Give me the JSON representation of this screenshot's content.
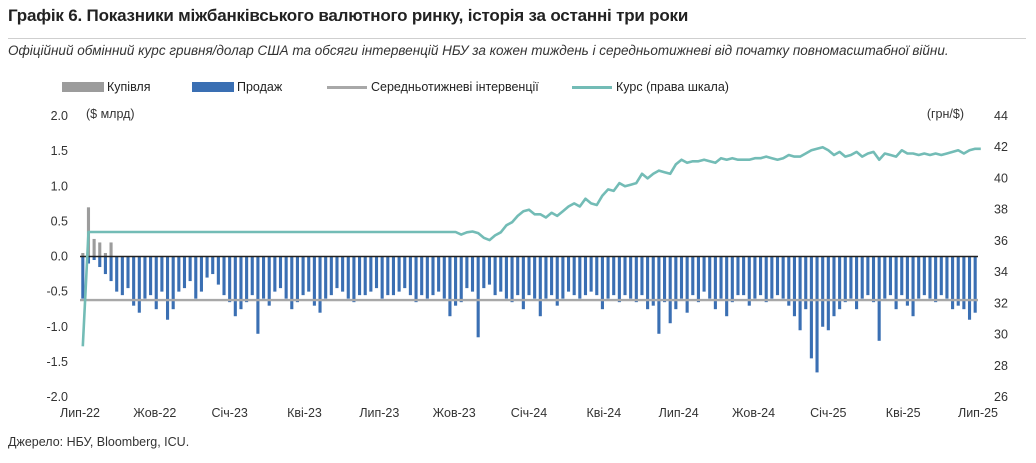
{
  "chart_data": {
    "type": "bar+line",
    "title": "Графік 6. Показники міжбанківського валютного ринку, історія за останні три роки",
    "subtitle": "Офіційний обмінний курс гривня/долар США та обсяги інтервенцій НБУ за кожен тиждень і середньотижневі від початку повномасштабної війни.",
    "source": "Джерело: НБУ, Bloomberg, ICU.",
    "y_left_unit": "($ млрд)",
    "y_right_unit": "(грн/$)",
    "ylim_left": [
      -2.0,
      2.0
    ],
    "ylim_right": [
      26,
      44
    ],
    "yticks_left": [
      "2.0",
      "1.5",
      "1.0",
      "0.5",
      "0.0",
      "-0.5",
      "-1.0",
      "-1.5",
      "-2.0"
    ],
    "yticks_right": [
      "44",
      "42",
      "40",
      "38",
      "36",
      "34",
      "32",
      "30",
      "28",
      "26"
    ],
    "x_ticks": [
      "Лип-22",
      "Жов-22",
      "Січ-23",
      "Кві-23",
      "Лип-23",
      "Жов-23",
      "Січ-24",
      "Кві-24",
      "Лип-24",
      "Жов-24",
      "Січ-25",
      "Кві-25",
      "Лип-25"
    ],
    "legend": [
      "Купівля",
      "Продаж",
      "Середньотижневі інтервенції",
      "Курс (права шкала)"
    ],
    "colors": {
      "buy": "#9c9c9c",
      "sell": "#3a6fb3",
      "avg_line": "#a8a8a8",
      "rate_line": "#73bcb6",
      "zero_line": "#222222"
    },
    "avg_weekly_intervention": -0.62,
    "series": [
      {
        "name": "Купівля",
        "values": [
          0.05,
          0.7,
          0.25,
          0.2,
          0.05,
          0.2,
          0.0,
          0.0,
          0.0,
          0.0,
          0.0,
          0.0,
          0.0,
          0.0,
          0.0,
          0.0,
          0.0,
          0.0,
          0.0,
          0.0,
          0.0,
          0.0,
          0.0,
          0.0,
          0.0,
          0.0,
          0.0,
          0.0,
          0.0,
          0.0,
          0.0,
          0.0,
          0.0,
          0.0,
          0.0,
          0.0,
          0.0,
          0.0,
          0.0,
          0.0,
          0.0,
          0.0,
          0.0,
          0.0,
          0.0,
          0.0,
          0.0,
          0.0,
          0.0,
          0.0,
          0.0,
          0.0,
          0.0,
          0.0,
          0.0,
          0.0,
          0.0,
          0.0,
          0.0,
          0.0,
          0.0,
          0.0,
          0.0,
          0.0,
          0.0,
          0.0,
          0.0,
          0.0,
          0.0,
          0.0,
          0.0,
          0.0,
          0.0,
          0.0,
          0.0,
          0.0,
          0.0,
          0.0,
          0.0,
          0.0,
          0.0,
          0.0,
          0.0,
          0.0,
          0.0,
          0.0,
          0.0,
          0.0,
          0.0,
          0.0,
          0.0,
          0.0,
          0.0,
          0.0,
          0.0,
          0.0,
          0.0,
          0.0,
          0.0,
          0.0,
          0.0,
          0.0,
          0.0,
          0.0,
          0.0,
          0.0,
          0.0,
          0.0,
          0.0,
          0.0,
          0.0,
          0.0,
          0.0,
          0.0,
          0.0,
          0.0,
          0.0,
          0.0,
          0.0,
          0.0,
          0.0,
          0.0,
          0.0,
          0.0,
          0.0,
          0.0,
          0.0,
          0.0,
          0.0,
          0.0,
          0.0,
          0.0,
          0.0,
          0.0,
          0.0,
          0.0,
          0.0,
          0.0,
          0.0,
          0.0,
          0.0,
          0.0,
          0.0,
          0.0,
          0.0,
          0.0,
          0.0,
          0.0,
          0.0,
          0.0,
          0.0,
          0.0,
          0.0,
          0.0,
          0.0,
          0.0,
          0.0,
          0.0,
          0.0,
          0.0,
          0.0
        ]
      },
      {
        "name": "Продаж",
        "values": [
          -0.6,
          -0.1,
          -0.05,
          -0.15,
          -0.25,
          -0.35,
          -0.5,
          -0.55,
          -0.45,
          -0.7,
          -0.8,
          -0.6,
          -0.55,
          -0.75,
          -0.5,
          -0.9,
          -0.75,
          -0.5,
          -0.45,
          -0.35,
          -0.6,
          -0.5,
          -0.3,
          -0.25,
          -0.4,
          -0.55,
          -0.65,
          -0.85,
          -0.75,
          -0.65,
          -0.55,
          -1.1,
          -0.6,
          -0.7,
          -0.5,
          -0.45,
          -0.6,
          -0.75,
          -0.65,
          -0.55,
          -0.5,
          -0.7,
          -0.8,
          -0.6,
          -0.55,
          -0.45,
          -0.5,
          -0.6,
          -0.65,
          -0.55,
          -0.55,
          -0.5,
          -0.45,
          -0.6,
          -0.55,
          -0.55,
          -0.5,
          -0.45,
          -0.55,
          -0.65,
          -0.55,
          -0.6,
          -0.55,
          -0.5,
          -0.6,
          -0.85,
          -0.7,
          -0.65,
          -0.45,
          -0.5,
          -1.15,
          -0.45,
          -0.4,
          -0.55,
          -0.5,
          -0.6,
          -0.65,
          -0.55,
          -0.75,
          -0.55,
          -0.6,
          -0.85,
          -0.6,
          -0.55,
          -0.7,
          -0.6,
          -0.5,
          -0.55,
          -0.6,
          -0.55,
          -0.5,
          -0.55,
          -0.75,
          -0.6,
          -0.55,
          -0.65,
          -0.55,
          -0.6,
          -0.65,
          -0.55,
          -0.75,
          -0.7,
          -1.1,
          -0.65,
          -0.95,
          -0.75,
          -0.6,
          -0.8,
          -0.55,
          -0.65,
          -0.5,
          -0.6,
          -0.75,
          -0.6,
          -0.85,
          -0.65,
          -0.55,
          -0.55,
          -0.7,
          -0.6,
          -0.55,
          -0.65,
          -0.6,
          -0.55,
          -0.6,
          -0.7,
          -0.85,
          -1.05,
          -0.75,
          -1.45,
          -1.65,
          -1.0,
          -1.05,
          -0.85,
          -0.75,
          -0.65,
          -0.6,
          -0.75,
          -0.6,
          -0.55,
          -0.65,
          -1.2,
          -0.6,
          -0.55,
          -0.75,
          -0.55,
          -0.7,
          -0.85,
          -0.6,
          -0.55,
          -0.6,
          -0.65,
          -0.55,
          -0.6,
          -0.75,
          -0.7,
          -0.75,
          -0.9,
          -0.8
        ]
      },
      {
        "name": "Курс (права шкала)",
        "axis": "right",
        "x_start": 0,
        "x_end": 157,
        "values": [
          29.25,
          36.57,
          36.57,
          36.57,
          36.57,
          36.57,
          36.57,
          36.57,
          36.57,
          36.57,
          36.57,
          36.57,
          36.57,
          36.57,
          36.57,
          36.57,
          36.57,
          36.57,
          36.57,
          36.57,
          36.57,
          36.57,
          36.57,
          36.57,
          36.57,
          36.57,
          36.57,
          36.57,
          36.57,
          36.57,
          36.57,
          36.57,
          36.57,
          36.57,
          36.57,
          36.57,
          36.57,
          36.57,
          36.57,
          36.57,
          36.57,
          36.57,
          36.57,
          36.57,
          36.57,
          36.57,
          36.57,
          36.57,
          36.57,
          36.57,
          36.57,
          36.57,
          36.57,
          36.57,
          36.57,
          36.57,
          36.57,
          36.57,
          36.57,
          36.57,
          36.57,
          36.57,
          36.57,
          36.57,
          36.57,
          36.57,
          36.57,
          36.4,
          36.55,
          36.6,
          36.5,
          36.2,
          36.05,
          36.35,
          36.55,
          37.0,
          37.2,
          37.6,
          37.9,
          38.0,
          37.7,
          37.7,
          37.5,
          37.8,
          37.6,
          37.9,
          38.2,
          38.4,
          38.2,
          38.7,
          38.4,
          38.3,
          38.9,
          39.3,
          39.2,
          39.7,
          39.5,
          39.6,
          39.7,
          40.3,
          40.0,
          40.3,
          40.5,
          40.4,
          40.3,
          40.9,
          41.2,
          41.0,
          41.1,
          41.1,
          41.2,
          41.1,
          41.0,
          41.3,
          41.2,
          41.3,
          41.2,
          41.2,
          41.2,
          41.3,
          41.3,
          41.4,
          41.3,
          41.2,
          41.3,
          41.5,
          41.4,
          41.4,
          41.6,
          41.8,
          41.9,
          42.0,
          41.8,
          41.5,
          41.7,
          41.4,
          41.5,
          41.7,
          41.4,
          41.6,
          41.7,
          41.2,
          41.6,
          41.5,
          41.4,
          41.8,
          41.6,
          41.6,
          41.5,
          41.6,
          41.5,
          41.6,
          41.5,
          41.6,
          41.7,
          41.8,
          41.6,
          41.8,
          41.9,
          41.9
        ]
      }
    ]
  }
}
